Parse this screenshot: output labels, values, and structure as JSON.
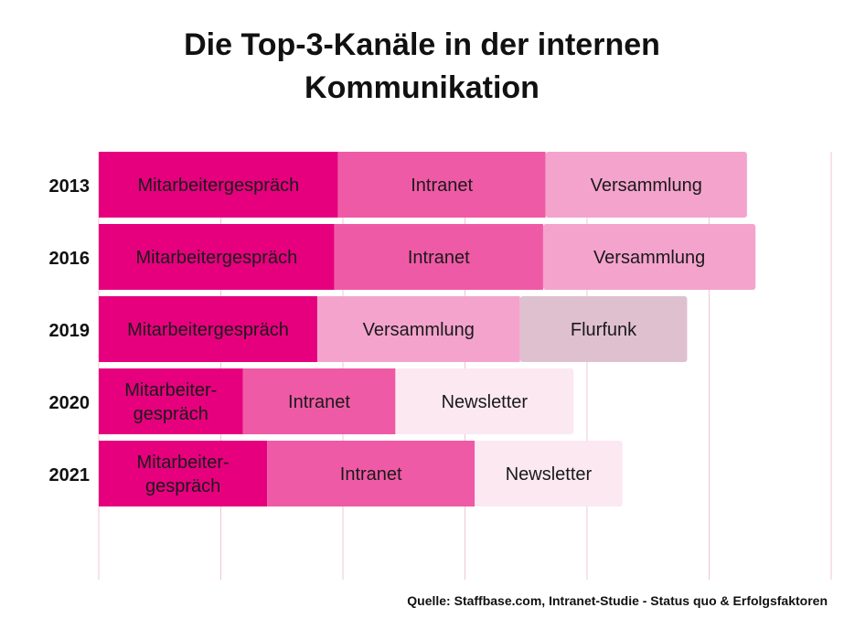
{
  "title_lines": [
    "Die Top-3-Kanäle in der internen",
    "Kommunikation"
  ],
  "source": "Quelle: Staffbase.com, Intranet-Studie - Status quo & Erfolgsfaktoren",
  "colors": {
    "Mitarbeitergespräch": "#e6007e",
    "Intranet": "#ef5aa6",
    "Versammlung": "#f4a3cd",
    "Flurfunk": "#dfc0cf",
    "Newsletter": "#fbe8f1",
    "gridline": "#f0c4da"
  },
  "chart_data": {
    "type": "bar",
    "orientation": "horizontal",
    "stacked": true,
    "title": "Die Top-3-Kanäle in der internen Kommunikation",
    "categories": [
      "2013",
      "2016",
      "2019",
      "2020",
      "2021"
    ],
    "xlim": [
      0,
      6
    ],
    "grid": true,
    "legend": "none",
    "rows": [
      {
        "year": "2013",
        "segments": [
          {
            "channel": "Mitarbeitergespräch",
            "label": "Mitarbeitergespräch",
            "value": 1.96
          },
          {
            "channel": "Intranet",
            "label": "Intranet",
            "value": 1.7
          },
          {
            "channel": "Versammlung",
            "label": "Versammlung",
            "value": 1.65
          }
        ]
      },
      {
        "year": "2016",
        "segments": [
          {
            "channel": "Mitarbeitergespräch",
            "label": "Mitarbeitergespräch",
            "value": 1.93
          },
          {
            "channel": "Intranet",
            "label": "Intranet",
            "value": 1.71
          },
          {
            "channel": "Versammlung",
            "label": "Versammlung",
            "value": 1.74
          }
        ]
      },
      {
        "year": "2019",
        "segments": [
          {
            "channel": "Mitarbeitergespräch",
            "label": "Mitarbeitergespräch",
            "value": 1.79
          },
          {
            "channel": "Versammlung",
            "label": "Versammlung",
            "value": 1.66
          },
          {
            "channel": "Flurfunk",
            "label": "Flurfunk",
            "value": 1.37
          }
        ]
      },
      {
        "year": "2020",
        "segments": [
          {
            "channel": "Mitarbeitergespräch",
            "label": [
              "Mitarbeiter-",
              "gespräch"
            ],
            "value": 1.18
          },
          {
            "channel": "Intranet",
            "label": "Intranet",
            "value": 1.25
          },
          {
            "channel": "Newsletter",
            "label": "Newsletter",
            "value": 1.46
          }
        ]
      },
      {
        "year": "2021",
        "segments": [
          {
            "channel": "Mitarbeitergespräch",
            "label": [
              "Mitarbeiter-",
              "gespräch"
            ],
            "value": 1.38
          },
          {
            "channel": "Intranet",
            "label": "Intranet",
            "value": 1.7
          },
          {
            "channel": "Newsletter",
            "label": "Newsletter",
            "value": 1.21
          }
        ]
      }
    ]
  }
}
